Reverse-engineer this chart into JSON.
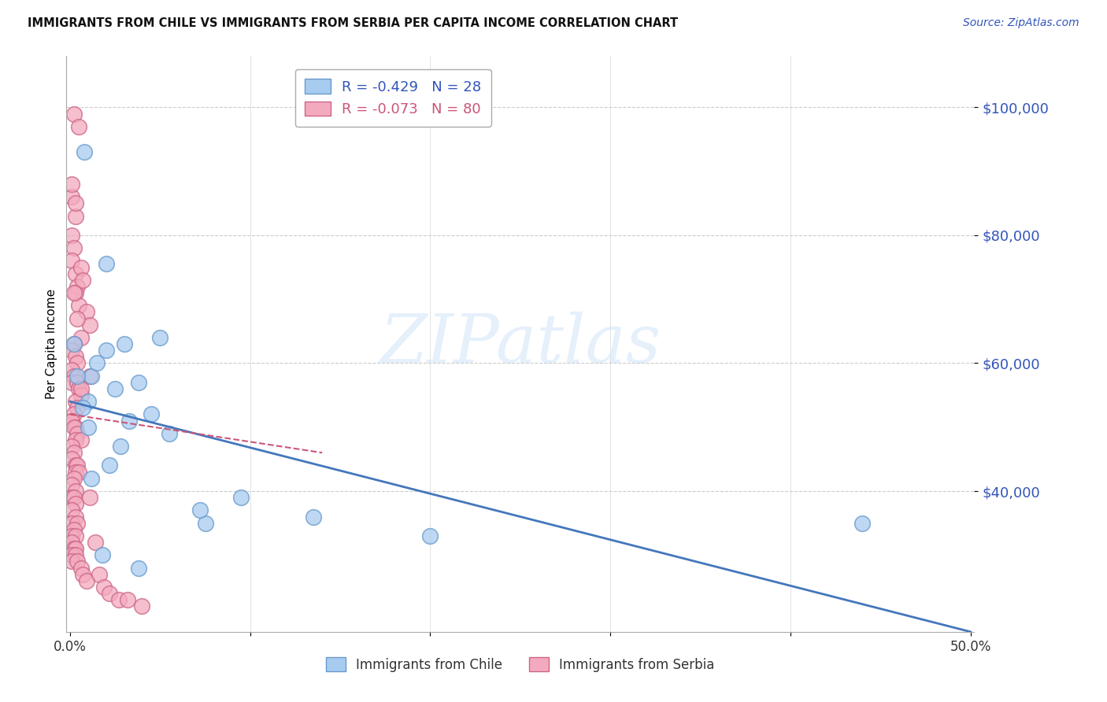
{
  "title": "IMMIGRANTS FROM CHILE VS IMMIGRANTS FROM SERBIA PER CAPITA INCOME CORRELATION CHART",
  "source": "Source: ZipAtlas.com",
  "ylabel": "Per Capita Income",
  "yticks": [
    40000,
    60000,
    80000,
    100000
  ],
  "ytick_labels": [
    "$40,000",
    "$60,000",
    "$80,000",
    "$100,000"
  ],
  "ylim": [
    18000,
    108000
  ],
  "xlim": [
    -0.002,
    0.502
  ],
  "watermark": "ZIPatlas",
  "chile_color": "#A8CCF0",
  "chile_edge": "#6699CC",
  "serbia_color": "#F4AABE",
  "serbia_edge": "#CC6688",
  "chile_R": -0.429,
  "chile_N": 28,
  "serbia_R": -0.073,
  "serbia_N": 80,
  "chile_line_x0": 0.0,
  "chile_line_y0": 54000,
  "chile_line_x1": 0.5,
  "chile_line_y1": 18000,
  "serbia_line_x0": 0.0,
  "serbia_line_y0": 52000,
  "serbia_line_x1": 0.14,
  "serbia_line_y1": 46000,
  "chile_scatter_x": [
    0.008,
    0.002,
    0.02,
    0.02,
    0.03,
    0.012,
    0.015,
    0.01,
    0.025,
    0.038,
    0.045,
    0.01,
    0.007,
    0.028,
    0.022,
    0.095,
    0.075,
    0.135,
    0.2,
    0.44,
    0.004,
    0.05,
    0.072,
    0.012,
    0.033,
    0.055,
    0.038,
    0.018
  ],
  "chile_scatter_y": [
    93000,
    63000,
    75500,
    62000,
    63000,
    58000,
    60000,
    54000,
    56000,
    57000,
    52000,
    50000,
    53000,
    47000,
    44000,
    39000,
    35000,
    36000,
    33000,
    35000,
    58000,
    64000,
    37000,
    42000,
    51000,
    49000,
    28000,
    30000
  ],
  "serbia_scatter_x": [
    0.002,
    0.005,
    0.001,
    0.003,
    0.001,
    0.002,
    0.001,
    0.003,
    0.004,
    0.003,
    0.006,
    0.007,
    0.005,
    0.009,
    0.011,
    0.006,
    0.002,
    0.001,
    0.003,
    0.004,
    0.001,
    0.002,
    0.001,
    0.004,
    0.005,
    0.006,
    0.003,
    0.004,
    0.002,
    0.001,
    0.001,
    0.003,
    0.002,
    0.004,
    0.003,
    0.006,
    0.001,
    0.002,
    0.001,
    0.003,
    0.004,
    0.003,
    0.005,
    0.002,
    0.001,
    0.003,
    0.001,
    0.002,
    0.003,
    0.001,
    0.003,
    0.001,
    0.004,
    0.002,
    0.001,
    0.003,
    0.001,
    0.002,
    0.003,
    0.001,
    0.003,
    0.001,
    0.004,
    0.006,
    0.007,
    0.009,
    0.011,
    0.014,
    0.016,
    0.019,
    0.022,
    0.027,
    0.032,
    0.04,
    0.001,
    0.003,
    0.004,
    0.011,
    0.006,
    0.002
  ],
  "serbia_scatter_y": [
    99000,
    97000,
    86000,
    83000,
    80000,
    78000,
    76000,
    74000,
    72000,
    71000,
    75000,
    73000,
    69000,
    68000,
    66000,
    64000,
    63000,
    62000,
    61000,
    60000,
    59000,
    58000,
    57000,
    57000,
    56000,
    55000,
    54000,
    53000,
    52000,
    51000,
    51000,
    50000,
    50000,
    49000,
    48000,
    48000,
    47000,
    46000,
    45000,
    44000,
    44000,
    43000,
    43000,
    42000,
    41000,
    40000,
    39000,
    39000,
    38000,
    37000,
    36000,
    35000,
    35000,
    34000,
    33000,
    33000,
    32000,
    31000,
    31000,
    30000,
    30000,
    29000,
    29000,
    28000,
    27000,
    26000,
    39000,
    32000,
    27000,
    25000,
    24000,
    23000,
    23000,
    22000,
    88000,
    85000,
    67000,
    58000,
    56000,
    71000
  ]
}
